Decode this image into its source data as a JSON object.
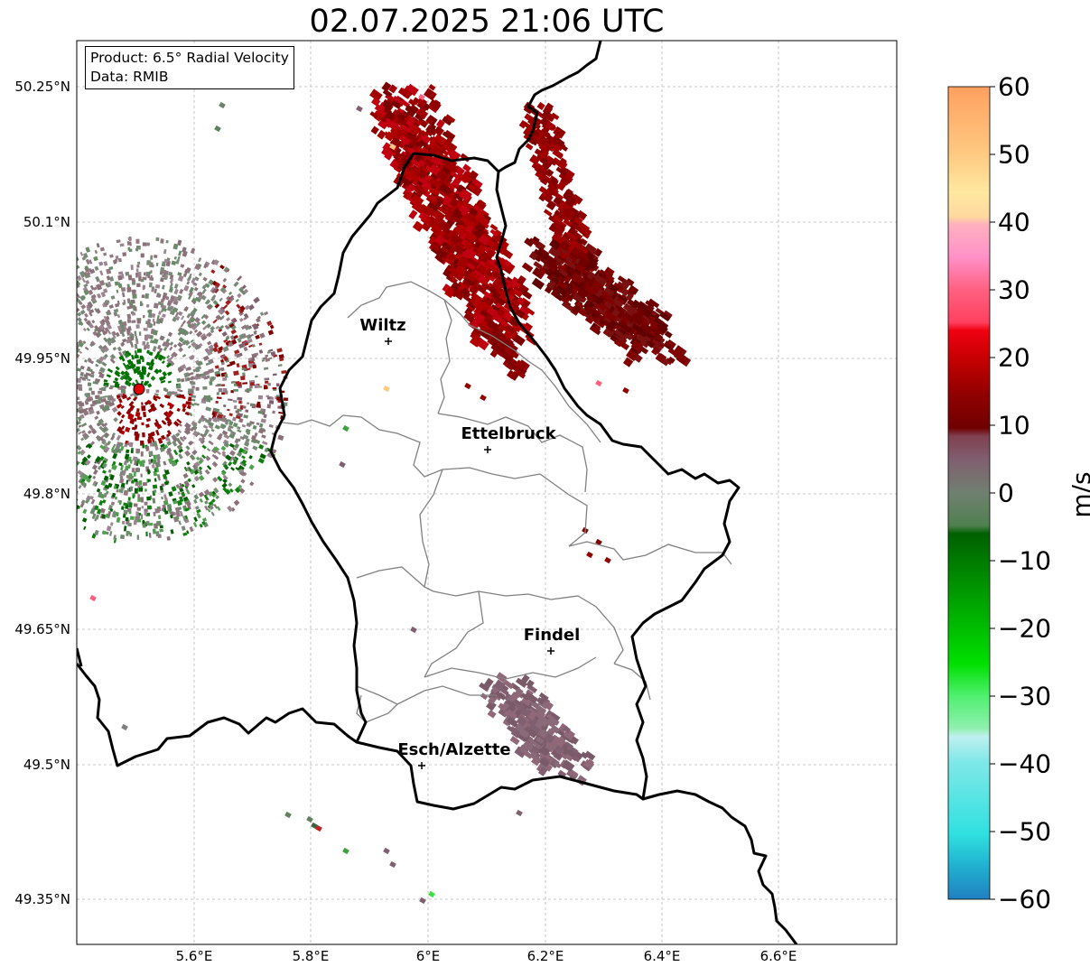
{
  "title": "02.07.2025 21:06 UTC",
  "info": {
    "product": "Product: 6.5° Radial Velocity",
    "data_source": "Data: RMIB"
  },
  "axes": {
    "lat_ticks": [
      "50.25°N",
      "50.1°N",
      "49.95°N",
      "49.8°N",
      "49.65°N",
      "49.5°N",
      "49.35°N"
    ],
    "lon_ticks": [
      "5.6°E",
      "5.8°E",
      "6°E",
      "6.2°E",
      "6.4°E",
      "6.6°E"
    ],
    "grid": true
  },
  "places": [
    {
      "name": "Wiltz"
    },
    {
      "name": "Ettelbruck"
    },
    {
      "name": "Findel"
    },
    {
      "name": "Esch/Alzette"
    }
  ],
  "radar_site_color": "#e00000",
  "colorbar": {
    "ticks": [
      "60",
      "50",
      "40",
      "30",
      "20",
      "10",
      "0",
      "−10",
      "−20",
      "−30",
      "−40",
      "−50",
      "−60"
    ],
    "unit": "m/s",
    "range": [
      -60,
      60
    ],
    "colors": {
      "top_orange": "#ffa060",
      "light_orange": "#ffc880",
      "pale_yellow": "#ffe0a0",
      "pink": "#ff90c8",
      "rose": "#ff5070",
      "red": "#f00010",
      "dark_red": "#a00000",
      "maroon": "#700000",
      "mauve": "#806070",
      "gray_green": "#608060",
      "dark_green": "#006000",
      "green": "#00c000",
      "bright_green": "#20ff20",
      "light_green": "#90f0b0",
      "pale_cyan": "#c0f0f0",
      "cyan": "#40e0e0",
      "blue": "#2080c0"
    }
  }
}
